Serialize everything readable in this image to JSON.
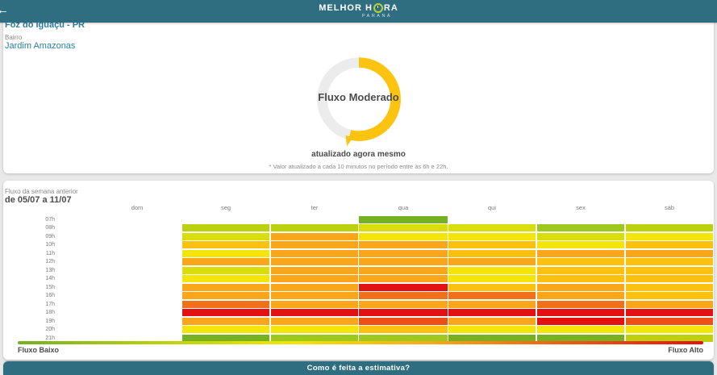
{
  "header": {
    "back_icon": "←",
    "logo": {
      "part1": "MELHOR H",
      "part2": "RA",
      "sub": "PARANÁ"
    }
  },
  "location": {
    "city": "Foz do Iguaçu - PR",
    "bairro_label": "Bairro",
    "bairro": "Jardim Amazonas"
  },
  "gauge": {
    "status": "Fluxo Moderado",
    "updated": "atualizado agora mesmo",
    "note": "* Valor atualizado a cada 10 minutos no período entre às 6h e 22h.",
    "fraction": 0.54,
    "arc_color": "#fcc40f",
    "track_color": "#ececec"
  },
  "week": {
    "subtitle": "Fluxo da semana anterior",
    "title": "de 05/07 a 11/07"
  },
  "chart_data": {
    "type": "heatmap",
    "title": "Fluxo da semana anterior de 05/07 a 11/07",
    "columns": [
      "dom",
      "seg",
      "ter",
      "qua",
      "qui",
      "sex",
      "sáb"
    ],
    "rows": [
      "07h",
      "08h",
      "09h",
      "10h",
      "11h",
      "12h",
      "13h",
      "14h",
      "15h",
      "16h",
      "17h",
      "18h",
      "19h",
      "20h",
      "21h"
    ],
    "highlight_day": "qua",
    "palette": {
      "G1": "#76b023",
      "G2": "#9dc81e",
      "L1": "#bcd00d",
      "L2": "#d9dd0b",
      "Y1": "#f3e40a",
      "A1": "#fbc10e",
      "O1": "#f9a61b",
      "O2": "#f1701a",
      "O3": "#ee4f14",
      "R1": "#e31112"
    },
    "palette_meaning": {
      "G1": "fluxo muito baixo",
      "G2": "fluxo baixo",
      "L1": "baixo",
      "L2": "baixo-moderado",
      "Y1": "moderado",
      "A1": "moderado-alto",
      "O1": "alto",
      "O2": "muito alto",
      "O3": "quase máximo",
      "R1": "fluxo máximo"
    },
    "cells": [
      [
        null,
        null,
        null,
        "G1",
        null,
        null,
        null
      ],
      [
        null,
        "L1",
        "L1",
        "L2",
        "L2",
        "G2",
        "L1"
      ],
      [
        null,
        "L2",
        "O1",
        "Y1",
        "Y1",
        "L2",
        "Y1"
      ],
      [
        null,
        "A1",
        "O1",
        "O1",
        "A1",
        "Y1",
        "A1"
      ],
      [
        null,
        "Y1",
        "O1",
        "O1",
        "A1",
        "O1",
        "O1"
      ],
      [
        null,
        "O1",
        "O1",
        "O1",
        "O1",
        "A1",
        "A1"
      ],
      [
        null,
        "L2",
        "O1",
        "O1",
        "Y1",
        "A1",
        "A1"
      ],
      [
        null,
        "Y1",
        "O1",
        "O1",
        "Y1",
        "A1",
        "A1"
      ],
      [
        null,
        "O1",
        "O1",
        "R1",
        "A1",
        "O1",
        "A1"
      ],
      [
        null,
        "O1",
        "O1",
        "O2",
        "O2",
        "O1",
        "A1"
      ],
      [
        null,
        "O2",
        "O1",
        "O1",
        "O1",
        "O2",
        "O1"
      ],
      [
        null,
        "R1",
        "R1",
        "R1",
        "R1",
        "R1",
        "R1"
      ],
      [
        null,
        "O1",
        "O1",
        "O3",
        "O1",
        "R1",
        "O3"
      ],
      [
        null,
        "Y1",
        "Y1",
        "A1",
        "Y1",
        "Y1",
        "Y1"
      ],
      [
        null,
        "G1",
        "G2",
        "G2",
        "G1",
        "G1",
        "L1"
      ]
    ],
    "legend": {
      "low": "Fluxo Baixo",
      "high": "Fluxo Alto",
      "gradient": [
        "#76b023",
        "#b8d00e",
        "#f3e50b",
        "#fba818",
        "#f05a15",
        "#e31112"
      ]
    }
  },
  "footer": {
    "cta": "Como é feita a estimativa?"
  }
}
